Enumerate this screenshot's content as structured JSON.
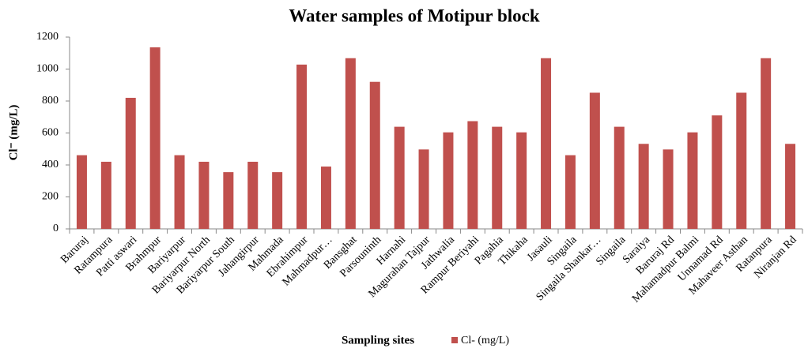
{
  "chart_data": {
    "type": "bar",
    "title": "Water samples of Motipur block",
    "x_label": "Sampling sites",
    "y_label": "Cl⁻ (mg/L)",
    "categories": [
      "Baruraj",
      "Ratampura",
      "Patti aswari",
      "Brahmpur",
      "Bariyarpur",
      "Bariyarpur North",
      "Bariyarpur South",
      "Jahangirpur",
      "Mahmada",
      "Ebrahimpur",
      "Mahmadpur…",
      "Bansghat",
      "Parsouninth",
      "Harnahi",
      "Magurahan Tajpur",
      "Jathwalia",
      "Rampur Beriyahi",
      "Pagahia",
      "Thikaha",
      "Jasauli",
      "Singaila",
      "Singaila Shankar…",
      "Singaila",
      "Saraiya",
      "Baruraj Rd",
      "Mahamadpur Balmi",
      "Unnamad Rd",
      "Mahaveer Asthan",
      "Ratanpura",
      "Niranjan Rd"
    ],
    "series": [
      {
        "name": "Cl- (mg/L)",
        "color": "#c0504d",
        "values": [
          461,
          420,
          820,
          1136,
          461,
          420,
          355,
          420,
          355,
          1028,
          390,
          1068,
          920,
          639,
          497,
          604,
          674,
          639,
          604,
          1068,
          461,
          852,
          639,
          532,
          497,
          604,
          710,
          852,
          1068,
          532
        ]
      }
    ],
    "ylim": [
      0,
      1200
    ],
    "yticks": [
      0,
      200,
      400,
      600,
      800,
      1000,
      1200
    ],
    "grid": false,
    "legend": "bottom"
  }
}
